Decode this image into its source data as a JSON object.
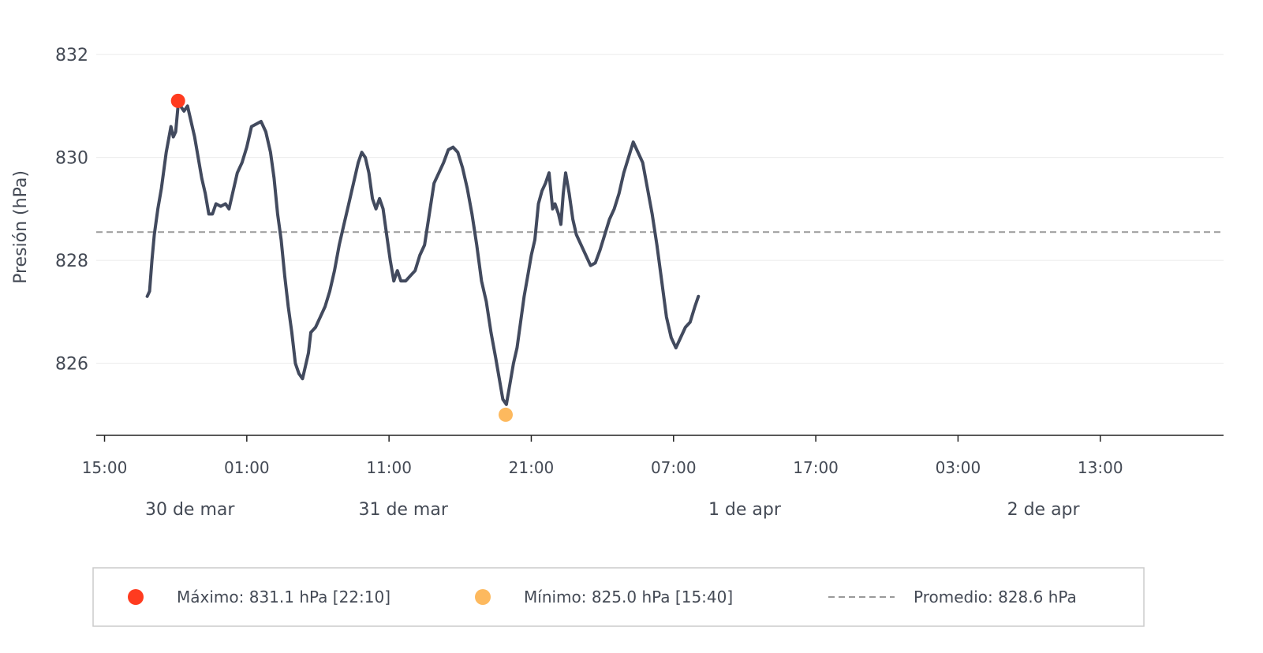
{
  "chart_data": {
    "type": "line",
    "ylabel": "Presión (hPa)",
    "ylim": [
      824.6,
      832.6
    ],
    "y_ticks": [
      826,
      828,
      830,
      832
    ],
    "y_tick_labels": [
      "826",
      "828",
      "830",
      "832"
    ],
    "x_ticks": [
      {
        "label": "15:00",
        "t": 0
      },
      {
        "label": "01:00",
        "t": 600
      },
      {
        "label": "11:00",
        "t": 1200
      },
      {
        "label": "21:00",
        "t": 1800
      },
      {
        "label": "07:00",
        "t": 2400
      },
      {
        "label": "17:00",
        "t": 3000
      },
      {
        "label": "03:00",
        "t": 3600
      },
      {
        "label": "13:00",
        "t": 4200
      }
    ],
    "date_labels": [
      {
        "label": "30 de mar",
        "t": 360
      },
      {
        "label": "31 de mar",
        "t": 1260
      },
      {
        "label": "1 de apr",
        "t": 2700
      },
      {
        "label": "2 de apr",
        "t": 3960
      }
    ],
    "xlim_minutes": [
      -35,
      4720
    ],
    "series": [
      {
        "color": "#424a5e",
        "points": [
          [
            180,
            827.3
          ],
          [
            190,
            827.4
          ],
          [
            200,
            828.0
          ],
          [
            210,
            828.5
          ],
          [
            225,
            829.0
          ],
          [
            240,
            829.4
          ],
          [
            260,
            830.1
          ],
          [
            280,
            830.6
          ],
          [
            290,
            830.4
          ],
          [
            300,
            830.5
          ],
          [
            310,
            831.0
          ],
          [
            320,
            831.0
          ],
          [
            335,
            830.9
          ],
          [
            350,
            831.0
          ],
          [
            365,
            830.7
          ],
          [
            380,
            830.4
          ],
          [
            395,
            830.0
          ],
          [
            410,
            829.6
          ],
          [
            425,
            829.3
          ],
          [
            440,
            828.9
          ],
          [
            455,
            828.9
          ],
          [
            470,
            829.1
          ],
          [
            490,
            829.05
          ],
          [
            510,
            829.1
          ],
          [
            525,
            829.0
          ],
          [
            540,
            829.3
          ],
          [
            560,
            829.7
          ],
          [
            580,
            829.9
          ],
          [
            600,
            830.2
          ],
          [
            620,
            830.6
          ],
          [
            640,
            830.65
          ],
          [
            660,
            830.7
          ],
          [
            680,
            830.5
          ],
          [
            700,
            830.1
          ],
          [
            715,
            829.6
          ],
          [
            730,
            828.9
          ],
          [
            745,
            828.4
          ],
          [
            760,
            827.7
          ],
          [
            775,
            827.1
          ],
          [
            790,
            826.6
          ],
          [
            805,
            826.0
          ],
          [
            820,
            825.8
          ],
          [
            835,
            825.7
          ],
          [
            850,
            826.0
          ],
          [
            860,
            826.2
          ],
          [
            870,
            826.6
          ],
          [
            890,
            826.7
          ],
          [
            910,
            826.9
          ],
          [
            930,
            827.1
          ],
          [
            950,
            827.4
          ],
          [
            970,
            827.8
          ],
          [
            990,
            828.3
          ],
          [
            1010,
            828.7
          ],
          [
            1030,
            829.1
          ],
          [
            1050,
            829.5
          ],
          [
            1070,
            829.9
          ],
          [
            1085,
            830.1
          ],
          [
            1100,
            830.0
          ],
          [
            1115,
            829.7
          ],
          [
            1130,
            829.2
          ],
          [
            1145,
            829.0
          ],
          [
            1160,
            829.2
          ],
          [
            1175,
            829.0
          ],
          [
            1190,
            828.5
          ],
          [
            1205,
            828.0
          ],
          [
            1220,
            827.6
          ],
          [
            1235,
            827.8
          ],
          [
            1250,
            827.6
          ],
          [
            1270,
            827.6
          ],
          [
            1290,
            827.7
          ],
          [
            1310,
            827.8
          ],
          [
            1330,
            828.1
          ],
          [
            1350,
            828.3
          ],
          [
            1370,
            828.9
          ],
          [
            1390,
            829.5
          ],
          [
            1410,
            829.7
          ],
          [
            1430,
            829.9
          ],
          [
            1450,
            830.15
          ],
          [
            1470,
            830.2
          ],
          [
            1490,
            830.1
          ],
          [
            1510,
            829.8
          ],
          [
            1530,
            829.4
          ],
          [
            1550,
            828.9
          ],
          [
            1570,
            828.3
          ],
          [
            1590,
            827.6
          ],
          [
            1610,
            827.2
          ],
          [
            1630,
            826.6
          ],
          [
            1650,
            826.1
          ],
          [
            1665,
            825.7
          ],
          [
            1680,
            825.3
          ],
          [
            1695,
            825.2
          ],
          [
            1710,
            825.6
          ],
          [
            1725,
            826.0
          ],
          [
            1740,
            826.3
          ],
          [
            1755,
            826.8
          ],
          [
            1770,
            827.3
          ],
          [
            1785,
            827.7
          ],
          [
            1800,
            828.1
          ],
          [
            1815,
            828.4
          ],
          [
            1830,
            829.1
          ],
          [
            1845,
            829.35
          ],
          [
            1860,
            829.5
          ],
          [
            1875,
            829.7
          ],
          [
            1890,
            829.0
          ],
          [
            1900,
            829.1
          ],
          [
            1915,
            828.9
          ],
          [
            1925,
            828.7
          ],
          [
            1935,
            829.3
          ],
          [
            1945,
            829.7
          ],
          [
            1960,
            829.3
          ],
          [
            1975,
            828.8
          ],
          [
            1990,
            828.5
          ],
          [
            2010,
            828.3
          ],
          [
            2030,
            828.1
          ],
          [
            2050,
            827.9
          ],
          [
            2070,
            827.95
          ],
          [
            2090,
            828.2
          ],
          [
            2110,
            828.5
          ],
          [
            2130,
            828.8
          ],
          [
            2150,
            829.0
          ],
          [
            2170,
            829.3
          ],
          [
            2190,
            829.7
          ],
          [
            2210,
            830.0
          ],
          [
            2230,
            830.3
          ],
          [
            2250,
            830.1
          ],
          [
            2270,
            829.9
          ],
          [
            2290,
            829.4
          ],
          [
            2310,
            828.9
          ],
          [
            2330,
            828.3
          ],
          [
            2350,
            827.6
          ],
          [
            2370,
            826.9
          ],
          [
            2390,
            826.5
          ],
          [
            2410,
            826.3
          ],
          [
            2430,
            826.5
          ],
          [
            2450,
            826.7
          ],
          [
            2470,
            826.8
          ],
          [
            2490,
            827.1
          ],
          [
            2505,
            827.3
          ]
        ]
      }
    ],
    "markers": {
      "max": {
        "t": 310,
        "value": 831.1,
        "color": "#ff3b1f"
      },
      "min": {
        "t": 1692,
        "value": 825.0,
        "color": "#fdb95e"
      }
    },
    "mean": {
      "value": 828.55,
      "color": "#999999"
    },
    "legend": {
      "placement": "bottom",
      "items": [
        {
          "kind": "dot",
          "color": "#ff3b1f",
          "label": "Máximo: 831.1 hPa   [22:10]"
        },
        {
          "kind": "dot",
          "color": "#fdb95e",
          "label": "Mínimo: 825.0 hPa   [15:40]"
        },
        {
          "kind": "dash",
          "color": "#999999",
          "label": "Promedio: 828.6 hPa"
        }
      ]
    },
    "grid": true
  }
}
